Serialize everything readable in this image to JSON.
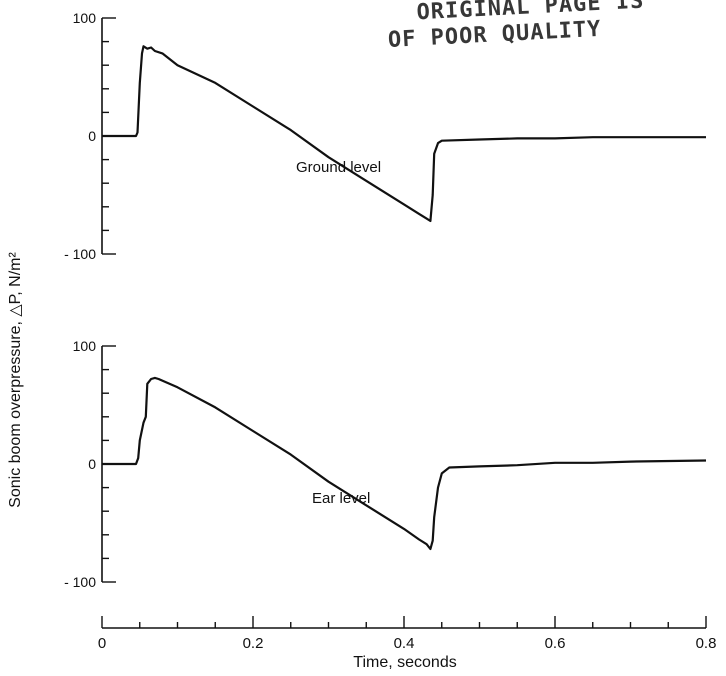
{
  "stamp": {
    "line1": "ORIGINAL PAGE IS",
    "line2": "OF POOR QUALITY"
  },
  "colors": {
    "ink": "#111111"
  },
  "chart_data": {
    "type": "line",
    "xlabel": "Time, seconds",
    "ylabel": "Sonic boom overpressure, △P, N/m²",
    "xlim": [
      0,
      0.8
    ],
    "x_ticks": [
      0,
      0.2,
      0.4,
      0.6,
      0.8
    ],
    "x_tick_labels": [
      "0",
      "0.2",
      "0.4",
      "0.6",
      "0.8"
    ],
    "grid": false,
    "panels": [
      {
        "annotation": "Ground level",
        "ylim": [
          -100,
          100
        ],
        "y_tick_labels": [
          "100",
          "0",
          "- 100"
        ],
        "series": [
          {
            "x": [
              0.0,
              0.045,
              0.047,
              0.05,
              0.053,
              0.055,
              0.06,
              0.065,
              0.07,
              0.08,
              0.1,
              0.15,
              0.2,
              0.25,
              0.3,
              0.35,
              0.4,
              0.42,
              0.43,
              0.435,
              0.438,
              0.44,
              0.445,
              0.45,
              0.5,
              0.55,
              0.6,
              0.65,
              0.7,
              0.8
            ],
            "y": [
              0,
              0,
              3,
              45,
              70,
              76,
              74,
              75,
              72,
              70,
              60,
              45,
              25,
              5,
              -18,
              -38,
              -58,
              -66,
              -70,
              -72,
              -50,
              -15,
              -6,
              -4,
              -3,
              -2,
              -2,
              -1,
              -1,
              -1
            ]
          }
        ]
      },
      {
        "annotation": "Ear level",
        "ylim": [
          -100,
          100
        ],
        "y_tick_labels": [
          "100",
          "0",
          "- 100"
        ],
        "series": [
          {
            "x": [
              0.0,
              0.045,
              0.048,
              0.05,
              0.055,
              0.058,
              0.06,
              0.065,
              0.07,
              0.075,
              0.1,
              0.15,
              0.2,
              0.25,
              0.3,
              0.35,
              0.4,
              0.42,
              0.43,
              0.435,
              0.438,
              0.44,
              0.445,
              0.45,
              0.46,
              0.5,
              0.55,
              0.6,
              0.65,
              0.7,
              0.8
            ],
            "y": [
              0,
              0,
              5,
              20,
              35,
              40,
              68,
              72,
              73,
              72,
              65,
              48,
              28,
              8,
              -15,
              -35,
              -55,
              -64,
              -68,
              -72,
              -65,
              -45,
              -20,
              -8,
              -3,
              -2,
              -1,
              1,
              1,
              2,
              3
            ]
          }
        ]
      }
    ]
  }
}
